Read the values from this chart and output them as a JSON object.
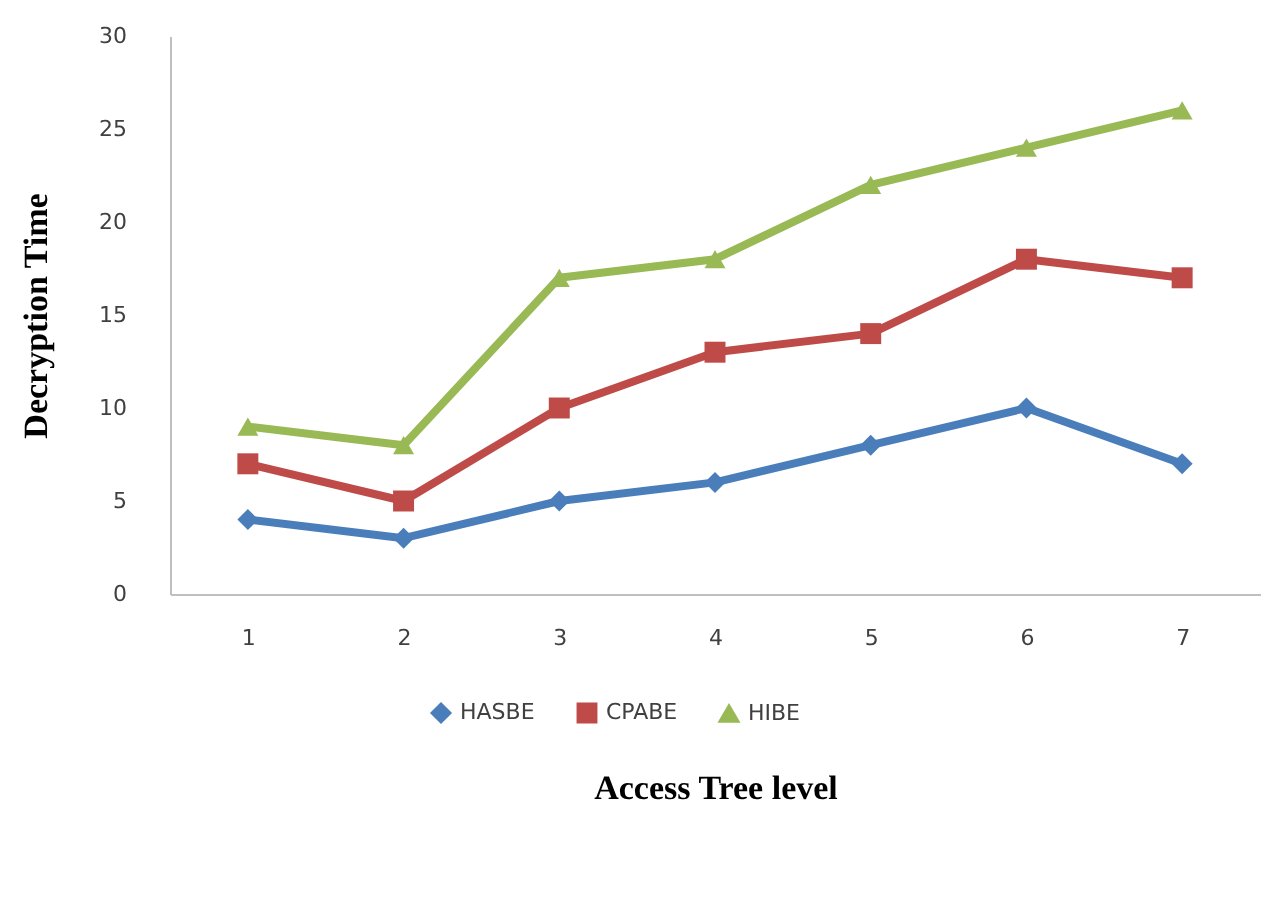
{
  "chart_data": {
    "type": "line",
    "xlabel": "Access Tree level",
    "ylabel": "Decryption Time",
    "categories": [
      "1",
      "2",
      "3",
      "4",
      "5",
      "6",
      "7"
    ],
    "series": [
      {
        "name": "HASBE",
        "color": "#4a7ebb",
        "marker": "diamond",
        "values": [
          4,
          3,
          5,
          6,
          8,
          10,
          7
        ]
      },
      {
        "name": "CPABE",
        "color": "#be4b48",
        "marker": "square",
        "values": [
          7,
          5,
          10,
          13,
          14,
          18,
          17
        ]
      },
      {
        "name": "HIBE",
        "color": "#98b954",
        "marker": "triangle",
        "values": [
          9,
          8,
          17,
          18,
          22,
          24,
          26
        ]
      }
    ],
    "ylim": [
      0,
      30
    ],
    "yticks": [
      0,
      5,
      10,
      15,
      20,
      25,
      30
    ],
    "grid": false,
    "legend": "bottom",
    "line_style": "solid"
  }
}
